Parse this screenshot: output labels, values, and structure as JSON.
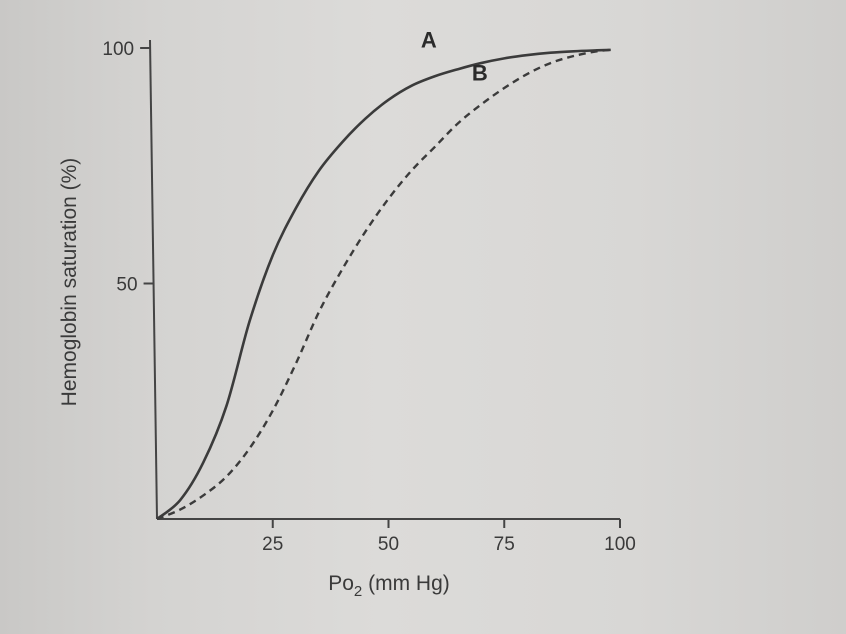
{
  "chart_data": {
    "type": "line",
    "xlabel": {
      "main": "Po",
      "sub": "2",
      "unit": " (mm Hg)"
    },
    "ylabel": "Hemoglobin saturation (%)",
    "xlim": [
      0,
      100
    ],
    "ylim": [
      0,
      100
    ],
    "x_ticks": [
      25,
      50,
      75,
      100
    ],
    "x_tick_labels": [
      "25",
      "50",
      "75",
      "100"
    ],
    "y_ticks": [
      50,
      100
    ],
    "y_tick_labels": [
      "50",
      "100"
    ],
    "grid": false,
    "colors": {
      "line": "#3b3b3b",
      "axis": "#444444"
    },
    "series": [
      {
        "name": "A",
        "style": "solid",
        "x": [
          0,
          5,
          10,
          15,
          20,
          25,
          30,
          35,
          40,
          45,
          50,
          55,
          60,
          65,
          70,
          75,
          80,
          85,
          90,
          95,
          98
        ],
        "y": [
          0,
          4,
          12,
          24,
          42,
          56,
          66,
          74,
          80,
          85,
          89,
          92,
          94,
          95.5,
          96.8,
          97.8,
          98.5,
          99,
          99.3,
          99.5,
          99.6
        ]
      },
      {
        "name": "B",
        "style": "dashed",
        "x": [
          0,
          5,
          10,
          15,
          20,
          25,
          30,
          35,
          40,
          45,
          50,
          55,
          60,
          65,
          70,
          75,
          80,
          85,
          90,
          95,
          98
        ],
        "y": [
          0,
          2,
          5,
          9,
          15,
          23,
          33,
          44,
          53,
          61,
          68,
          74,
          79,
          84,
          88,
          91.5,
          94.5,
          96.8,
          98.3,
          99.3,
          99.6
        ]
      }
    ]
  }
}
